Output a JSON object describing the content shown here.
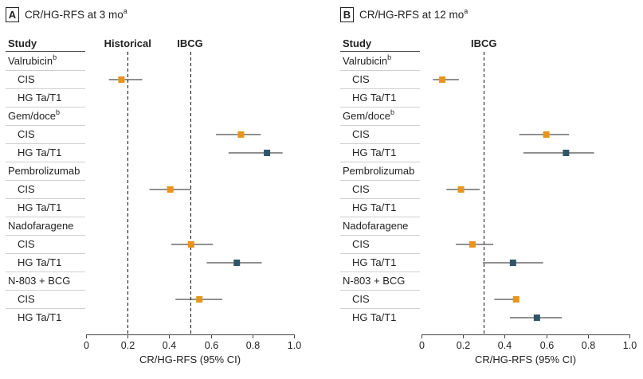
{
  "chart_data": [
    {
      "type": "forest",
      "panel_letter": "A",
      "title": "CR/HG-RFS at 3 mo",
      "title_superscript": "a",
      "header": "Study",
      "reference_lines": [
        {
          "name": "historical",
          "label": "Historical",
          "value": 0.2
        },
        {
          "name": "ibcg",
          "label": "IBCG",
          "value": 0.5
        }
      ],
      "rows": [
        {
          "label": "Valrubicin",
          "sup": "b",
          "kind": "group"
        },
        {
          "label": "CIS",
          "kind": "item",
          "estimate": 0.17,
          "ci": [
            0.11,
            0.27
          ],
          "series": "CIS"
        },
        {
          "label": "HG Ta/T1",
          "kind": "item"
        },
        {
          "label": "Gem/doce",
          "sup": "b",
          "kind": "group"
        },
        {
          "label": "CIS",
          "kind": "item",
          "estimate": 0.745,
          "ci": [
            0.625,
            0.84
          ],
          "series": "CIS"
        },
        {
          "label": "HG Ta/T1",
          "kind": "item",
          "estimate": 0.87,
          "ci": [
            0.685,
            0.945
          ],
          "series": "HG Ta/T1"
        },
        {
          "label": "Pembrolizumab",
          "kind": "group"
        },
        {
          "label": "CIS",
          "kind": "item",
          "estimate": 0.405,
          "ci": [
            0.305,
            0.505
          ],
          "series": "CIS"
        },
        {
          "label": "HG Ta/T1",
          "kind": "item"
        },
        {
          "label": "Nadofaragene",
          "kind": "group"
        },
        {
          "label": "CIS",
          "kind": "item",
          "estimate": 0.505,
          "ci": [
            0.41,
            0.61
          ],
          "series": "CIS"
        },
        {
          "label": "HG Ta/T1",
          "kind": "item",
          "estimate": 0.725,
          "ci": [
            0.58,
            0.845
          ],
          "series": "HG Ta/T1"
        },
        {
          "label": "N-803 + BCG",
          "kind": "group"
        },
        {
          "label": "CIS",
          "kind": "item",
          "estimate": 0.545,
          "ci": [
            0.43,
            0.655
          ],
          "series": "CIS"
        },
        {
          "label": "HG Ta/T1",
          "kind": "item"
        }
      ],
      "xlim": [
        0,
        1.0
      ],
      "xticks": [
        "0",
        "0.2",
        "0.4",
        "0.6",
        "0.8",
        "1.0"
      ],
      "xlabel": "CR/HG-RFS (95% CI)"
    },
    {
      "type": "forest",
      "panel_letter": "B",
      "title": "CR/HG-RFS at 12 mo",
      "title_superscript": "a",
      "header": "Study",
      "reference_lines": [
        {
          "name": "ibcg",
          "label": "IBCG",
          "value": 0.3
        }
      ],
      "rows": [
        {
          "label": "Valrubicin",
          "sup": "b",
          "kind": "group"
        },
        {
          "label": "CIS",
          "kind": "item",
          "estimate": 0.1,
          "ci": [
            0.055,
            0.18
          ],
          "series": "CIS"
        },
        {
          "label": "HG Ta/T1",
          "kind": "item"
        },
        {
          "label": "Gem/doce",
          "sup": "b",
          "kind": "group"
        },
        {
          "label": "CIS",
          "kind": "item",
          "estimate": 0.6,
          "ci": [
            0.47,
            0.71
          ],
          "series": "CIS"
        },
        {
          "label": "HG Ta/T1",
          "kind": "item",
          "estimate": 0.695,
          "ci": [
            0.49,
            0.83
          ],
          "series": "HG Ta/T1"
        },
        {
          "label": "Pembrolizumab",
          "kind": "group"
        },
        {
          "label": "CIS",
          "kind": "item",
          "estimate": 0.19,
          "ci": [
            0.12,
            0.28
          ],
          "series": "CIS"
        },
        {
          "label": "HG Ta/T1",
          "kind": "item"
        },
        {
          "label": "Nadofaragene",
          "kind": "group"
        },
        {
          "label": "CIS",
          "kind": "item",
          "estimate": 0.245,
          "ci": [
            0.165,
            0.345
          ],
          "series": "CIS"
        },
        {
          "label": "HG Ta/T1",
          "kind": "item",
          "estimate": 0.44,
          "ci": [
            0.295,
            0.585
          ],
          "series": "HG Ta/T1"
        },
        {
          "label": "N-803 + BCG",
          "kind": "group"
        },
        {
          "label": "CIS",
          "kind": "item",
          "estimate": 0.455,
          "ci": [
            0.35,
            0.455
          ],
          "series": "CIS"
        },
        {
          "label": "HG Ta/T1",
          "kind": "item",
          "estimate": 0.555,
          "ci": [
            0.425,
            0.675
          ],
          "series": "HG Ta/T1"
        }
      ],
      "xlim": [
        0,
        1.0
      ],
      "xticks": [
        "0",
        "0.2",
        "0.4",
        "0.6",
        "0.8",
        "1.0"
      ],
      "xlabel": "CR/HG-RFS (95% CI)"
    }
  ],
  "colors": {
    "CIS": "#e8941a",
    "HG Ta/T1": "#2f5668",
    "text": "#222222",
    "divider": "#cfcfcf",
    "axis": "#444444"
  }
}
